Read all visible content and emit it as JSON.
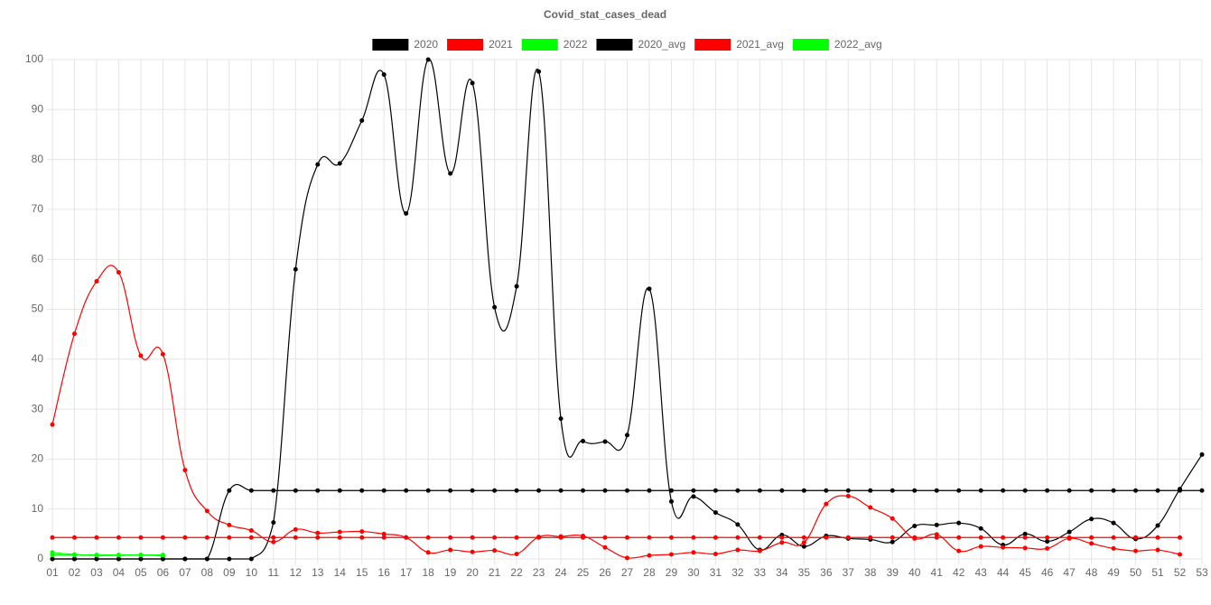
{
  "chart_data": {
    "type": "line",
    "title": "Covid_stat_cases_dead",
    "categories": [
      "01",
      "02",
      "03",
      "04",
      "05",
      "06",
      "07",
      "08",
      "09",
      "10",
      "11",
      "12",
      "13",
      "14",
      "15",
      "16",
      "17",
      "18",
      "19",
      "20",
      "21",
      "22",
      "23",
      "24",
      "25",
      "26",
      "27",
      "28",
      "29",
      "30",
      "31",
      "32",
      "33",
      "34",
      "35",
      "36",
      "37",
      "38",
      "39",
      "40",
      "41",
      "42",
      "43",
      "44",
      "45",
      "46",
      "47",
      "48",
      "49",
      "50",
      "51",
      "52",
      "53"
    ],
    "series": [
      {
        "name": "2020",
        "color": "#000000",
        "values": [
          0,
          0,
          0,
          0,
          0,
          0,
          0,
          0,
          0,
          0,
          7.3,
          58,
          79,
          79.2,
          87.8,
          97,
          69.2,
          100,
          77.2,
          95.3,
          50.4,
          54.6,
          97.6,
          28.1,
          23.6,
          23.5,
          24.8,
          54.1,
          11.5,
          12.5,
          9.3,
          6.9,
          1.8,
          4.8,
          2.5,
          4.6,
          4.1,
          3.9,
          3.4,
          6.6,
          6.8,
          7.2,
          6.1,
          2.8,
          5.0,
          3.5,
          5.4,
          8.0,
          7.2,
          4.0,
          6.7,
          14.0,
          20.9
        ]
      },
      {
        "name": "2021",
        "color": "#ff0000",
        "values": [
          26.9,
          45.1,
          55.6,
          57.4,
          40.7,
          41.0,
          17.8,
          9.6,
          6.8,
          5.7,
          3.4,
          5.9,
          5.2,
          5.4,
          5.5,
          5.0,
          4.3,
          1.3,
          1.8,
          1.4,
          1.7,
          1.0,
          4.4,
          4.5,
          4.6,
          2.3,
          0.2,
          0.7,
          0.9,
          1.3,
          1.0,
          1.8,
          1.6,
          3.3,
          3.3,
          11.0,
          12.6,
          10.3,
          8.1,
          4.1,
          4.9,
          1.6,
          2.5,
          2.3,
          2.2,
          2.1,
          4.1,
          3.1,
          2.1,
          1.6,
          1.8,
          0.9,
          null
        ]
      },
      {
        "name": "2022",
        "color": "#00ff00",
        "values": [
          1.3,
          0.9,
          0.7,
          0.7,
          0.8,
          0.6,
          null,
          null,
          null,
          null,
          null,
          null,
          null,
          null,
          null,
          null,
          null,
          null,
          null,
          null,
          null,
          null,
          null,
          null,
          null,
          null,
          null,
          null,
          null,
          null,
          null,
          null,
          null,
          null,
          null,
          null,
          null,
          null,
          null,
          null,
          null,
          null,
          null,
          null,
          null,
          null,
          null,
          null,
          null,
          null,
          null,
          null,
          null
        ]
      },
      {
        "name": "2020_avg",
        "color": "#000000",
        "values": [
          0,
          0,
          0,
          0,
          0,
          0,
          0,
          0,
          13.7,
          13.7,
          13.7,
          13.7,
          13.7,
          13.7,
          13.7,
          13.7,
          13.7,
          13.7,
          13.7,
          13.7,
          13.7,
          13.7,
          13.7,
          13.7,
          13.7,
          13.7,
          13.7,
          13.7,
          13.7,
          13.7,
          13.7,
          13.7,
          13.7,
          13.7,
          13.7,
          13.7,
          13.7,
          13.7,
          13.7,
          13.7,
          13.7,
          13.7,
          13.7,
          13.7,
          13.7,
          13.7,
          13.7,
          13.7,
          13.7,
          13.7,
          13.7,
          13.7,
          13.7
        ]
      },
      {
        "name": "2021_avg",
        "color": "#ff0000",
        "values": [
          4.3,
          4.3,
          4.3,
          4.3,
          4.3,
          4.3,
          4.3,
          4.3,
          4.3,
          4.3,
          4.3,
          4.3,
          4.3,
          4.3,
          4.3,
          4.3,
          4.3,
          4.3,
          4.3,
          4.3,
          4.3,
          4.3,
          4.3,
          4.3,
          4.3,
          4.3,
          4.3,
          4.3,
          4.3,
          4.3,
          4.3,
          4.3,
          4.3,
          4.3,
          4.3,
          4.3,
          4.3,
          4.3,
          4.3,
          4.3,
          4.3,
          4.3,
          4.3,
          4.3,
          4.3,
          4.3,
          4.3,
          4.3,
          4.3,
          4.3,
          4.3,
          4.3,
          null
        ]
      },
      {
        "name": "2022_avg",
        "color": "#00ff00",
        "values": [
          0.8,
          0.8,
          0.8,
          0.8,
          0.8,
          0.8,
          null,
          null,
          null,
          null,
          null,
          null,
          null,
          null,
          null,
          null,
          null,
          null,
          null,
          null,
          null,
          null,
          null,
          null,
          null,
          null,
          null,
          null,
          null,
          null,
          null,
          null,
          null,
          null,
          null,
          null,
          null,
          null,
          null,
          null,
          null,
          null,
          null,
          null,
          null,
          null,
          null,
          null,
          null,
          null,
          null,
          null,
          null
        ]
      }
    ],
    "ylim": [
      0,
      100
    ],
    "yticks": [
      0,
      10,
      20,
      30,
      40,
      50,
      60,
      70,
      80,
      90,
      100
    ],
    "grid": true,
    "legend": "top"
  }
}
